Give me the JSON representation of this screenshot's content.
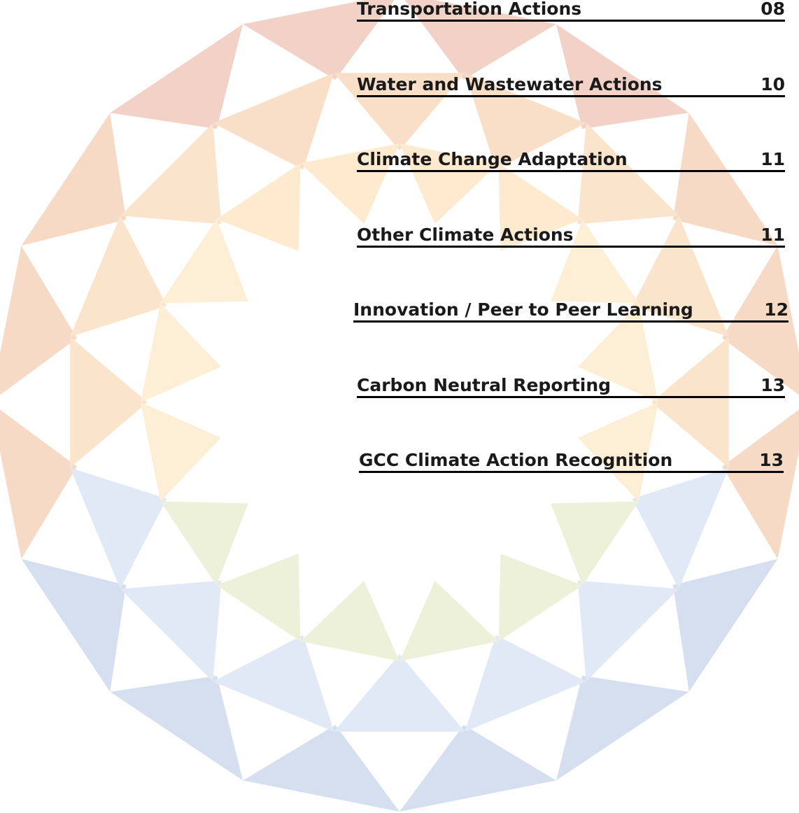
{
  "toc": {
    "entries": [
      {
        "title": "Transportation Actions",
        "page": "08"
      },
      {
        "title": "Water and Wastewater Actions",
        "page": "10"
      },
      {
        "title": "Climate Change Adaptation",
        "page": "11"
      },
      {
        "title": "Other Climate Actions",
        "page": "11"
      },
      {
        "title": "Innovation / Peer to Peer Learning",
        "page": "12"
      },
      {
        "title": "Carbon Neutral Reporting",
        "page": "13"
      },
      {
        "title": "GCC Climate Action Recognition",
        "page": "13"
      }
    ]
  }
}
